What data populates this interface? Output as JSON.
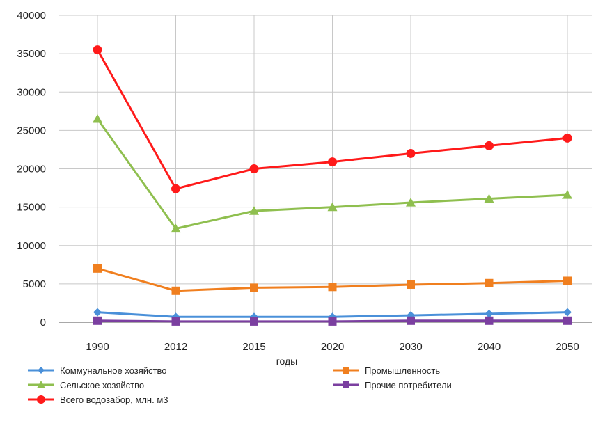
{
  "chart_data": {
    "type": "line",
    "title": "",
    "xlabel": "годы",
    "ylabel": "",
    "categories": [
      "1990",
      "2012",
      "2015",
      "2020",
      "2030",
      "2040",
      "2050"
    ],
    "ylim": [
      0,
      40000
    ],
    "yticks": [
      0,
      5000,
      10000,
      15000,
      20000,
      25000,
      30000,
      35000,
      40000
    ],
    "grid": {
      "horizontal": true,
      "vertical": true
    },
    "legend_position": "bottom",
    "series": [
      {
        "name": "Коммунальное хозяйство",
        "color": "#4a90d9",
        "marker": "diamond",
        "values": [
          1300,
          700,
          700,
          700,
          900,
          1100,
          1300
        ]
      },
      {
        "name": "Сельское хозяйство",
        "color": "#8fbf4f",
        "marker": "triangle",
        "values": [
          26500,
          12200,
          14500,
          15000,
          15600,
          16100,
          16600
        ]
      },
      {
        "name": "Всего водозабор, млн. м3",
        "color": "#ff1a1a",
        "marker": "circle",
        "values": [
          35500,
          17400,
          20000,
          20900,
          22000,
          23000,
          24000
        ]
      },
      {
        "name": "Промышленность",
        "color": "#f07f1f",
        "marker": "square",
        "values": [
          7000,
          4100,
          4500,
          4600,
          4900,
          5100,
          5400
        ]
      },
      {
        "name": "Прочие потребители",
        "color": "#7b3fa0",
        "marker": "square",
        "values": [
          200,
          100,
          100,
          100,
          200,
          200,
          200
        ]
      }
    ]
  }
}
